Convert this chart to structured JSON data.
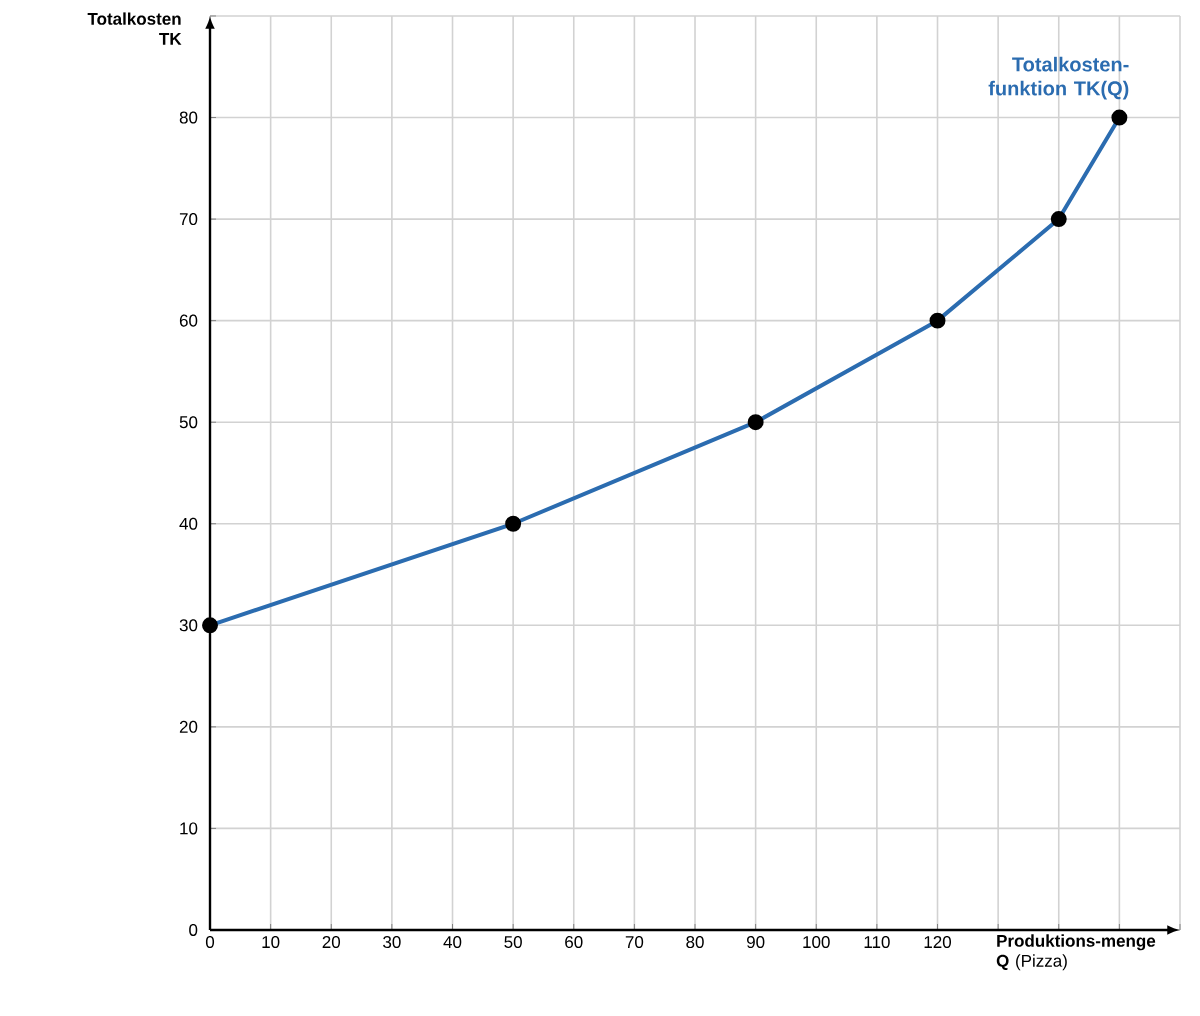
{
  "chart_data": {
    "type": "line",
    "ylabel": "Totalkosten TK",
    "xlabel": "**Produktions-menge Q** (Pizza)",
    "x": [
      0,
      50,
      90,
      120,
      140,
      150
    ],
    "series": [
      {
        "name": "Totalkosten-funktion TK(Q)",
        "color": "#2b6cb0",
        "values": [
          30,
          40,
          50,
          60,
          70,
          80
        ]
      }
    ],
    "xlim": [
      0,
      160
    ],
    "ylim": [
      0,
      90
    ],
    "xticks": [
      0,
      10,
      20,
      30,
      40,
      50,
      60,
      70,
      80,
      90,
      100,
      110,
      120,
      {
        "value": 130,
        "label": null
      },
      {
        "value": 140,
        "label": null
      },
      {
        "value": 150,
        "label": null
      },
      {
        "value": 160,
        "label": null
      }
    ],
    "yticks": [
      0,
      10,
      20,
      30,
      40,
      50,
      60,
      70,
      80,
      {
        "value": 90,
        "label": null
      }
    ],
    "grid": true,
    "marker": "circle",
    "line_style": "solid"
  }
}
